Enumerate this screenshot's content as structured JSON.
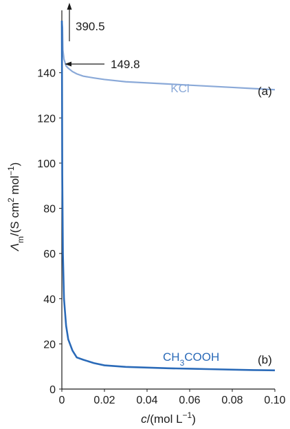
{
  "chart_data": {
    "type": "line",
    "title": "",
    "xlabel": {
      "prefix": "c",
      "suffix": "/(mol L",
      "sup": "−1",
      "close": ")"
    },
    "ylabel": {
      "prefix": "Λ",
      "sub": "m",
      "middle": "/(S cm",
      "sup1": "2",
      "middle2": " mol",
      "sup2": "−1",
      "close": ")"
    },
    "xlim": [
      0,
      0.1
    ],
    "ylim": [
      0,
      160
    ],
    "x_ticks": [
      "0",
      "0.02",
      "0.04",
      "0.06",
      "0.08",
      "0.10"
    ],
    "x_tick_values": [
      0,
      0.02,
      0.04,
      0.06,
      0.08,
      0.1
    ],
    "y_ticks": [
      "0",
      "20",
      "40",
      "60",
      "80",
      "100",
      "120",
      "140"
    ],
    "y_tick_values": [
      0,
      20,
      40,
      60,
      80,
      100,
      120,
      140
    ],
    "grid": false,
    "series": [
      {
        "name": "KCl",
        "tag": "(a)",
        "color": "#8aa9d8",
        "x": [
          0.0,
          0.0003,
          0.0005,
          0.001,
          0.002,
          0.003,
          0.005,
          0.007,
          0.01,
          0.015,
          0.02,
          0.03,
          0.04,
          0.05,
          0.06,
          0.07,
          0.08,
          0.09,
          0.1
        ],
        "y": [
          170,
          160,
          150,
          146,
          143,
          142,
          140.5,
          139.5,
          138.5,
          137.7,
          137,
          136,
          135.5,
          135,
          134.5,
          134,
          133.5,
          133,
          132.5
        ]
      },
      {
        "name": "CH3COOH",
        "name_parts": {
          "a": "CH",
          "sub": "3",
          "b": "COOH"
        },
        "tag": "(b)",
        "color": "#2a6ab8",
        "x": [
          0.0,
          0.0002,
          0.0005,
          0.001,
          0.002,
          0.003,
          0.005,
          0.007,
          0.01,
          0.015,
          0.02,
          0.03,
          0.04,
          0.05,
          0.06,
          0.07,
          0.08,
          0.09,
          0.1
        ],
        "y": [
          165,
          95,
          60,
          40,
          28,
          22,
          17,
          14,
          13,
          11.5,
          10.5,
          9.8,
          9.5,
          9.2,
          9,
          8.8,
          8.6,
          8.4,
          8.3
        ]
      }
    ],
    "annotations": [
      {
        "text": "390.5",
        "arrow": "up",
        "series": "CH3COOH"
      },
      {
        "text": "149.8",
        "arrow": "left",
        "value": 149.8
      }
    ]
  }
}
